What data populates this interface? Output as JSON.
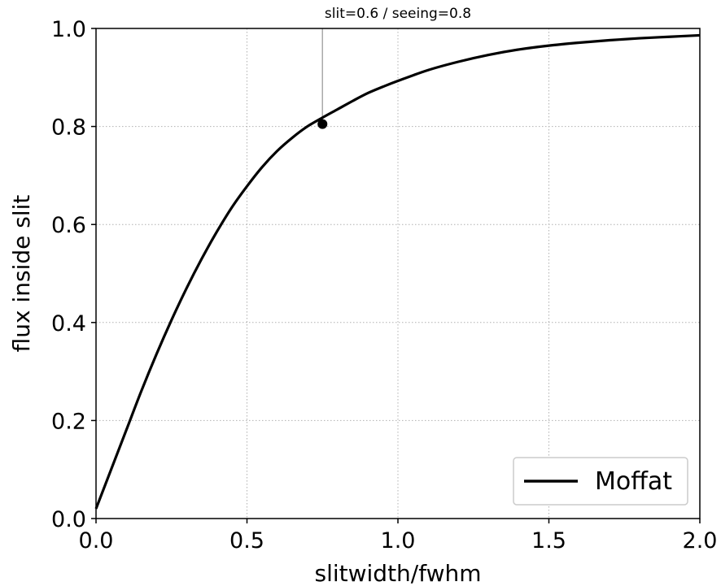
{
  "chart_data": {
    "type": "line",
    "title": "slit=0.6 / seeing=0.8",
    "xlabel": "slitwidth/fwhm",
    "ylabel": "flux inside slit",
    "xlim": [
      0.0,
      2.0
    ],
    "ylim": [
      0.0,
      1.0
    ],
    "xticks": [
      "0.0",
      "0.5",
      "1.0",
      "1.5",
      "2.0"
    ],
    "yticks": [
      "0.0",
      "0.2",
      "0.4",
      "0.6",
      "0.8",
      "1.0"
    ],
    "grid": true,
    "grid_style": "dotted",
    "legend_position": "lower-right",
    "series": [
      {
        "name": "Moffat",
        "color": "#000000",
        "x": [
          0.0,
          0.05,
          0.1,
          0.15,
          0.2,
          0.25,
          0.3,
          0.35,
          0.4,
          0.45,
          0.5,
          0.55,
          0.6,
          0.65,
          0.7,
          0.75,
          0.8,
          0.85,
          0.9,
          0.95,
          1.0,
          1.1,
          1.2,
          1.3,
          1.4,
          1.5,
          1.6,
          1.7,
          1.8,
          1.9,
          2.0
        ],
        "y": [
          0.02,
          0.1,
          0.18,
          0.26,
          0.335,
          0.405,
          0.47,
          0.53,
          0.585,
          0.635,
          0.678,
          0.717,
          0.75,
          0.777,
          0.8,
          0.818,
          0.835,
          0.852,
          0.868,
          0.881,
          0.893,
          0.915,
          0.932,
          0.946,
          0.957,
          0.965,
          0.971,
          0.976,
          0.98,
          0.983,
          0.986
        ]
      }
    ],
    "marker": {
      "x": 0.75,
      "y": 0.805,
      "color": "#000000"
    },
    "vline": {
      "x": 0.75,
      "color": "#aaaaaa"
    }
  }
}
